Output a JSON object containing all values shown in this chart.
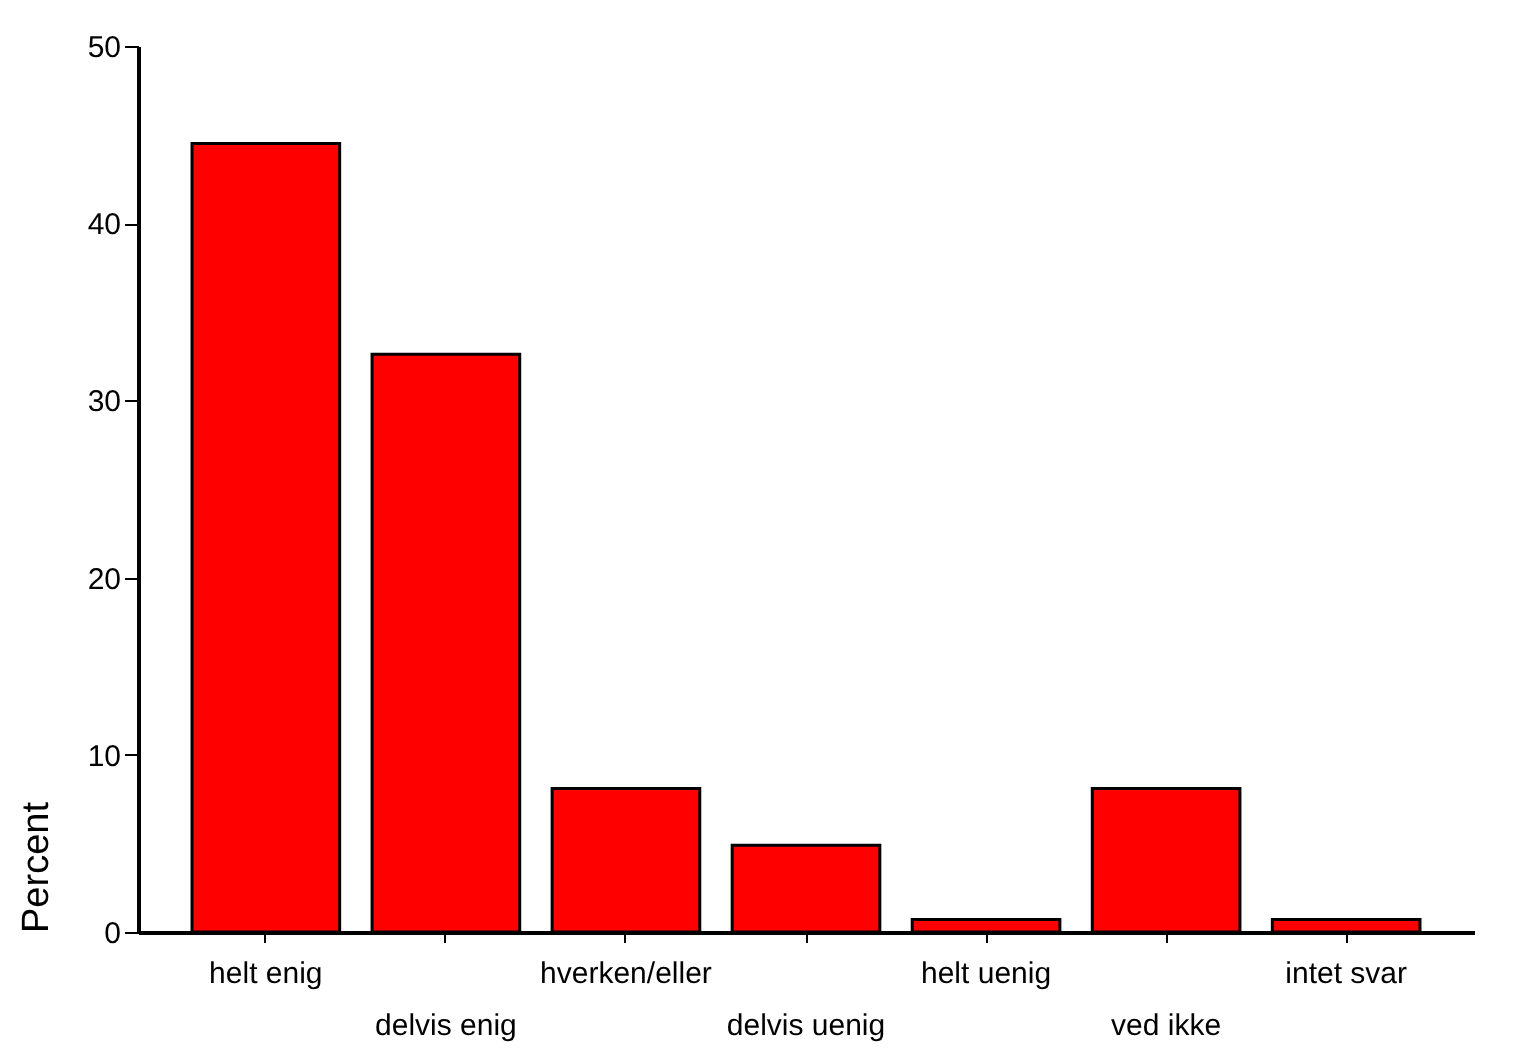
{
  "chart_data": {
    "type": "bar",
    "ylabel": "Percent",
    "categories": [
      "helt enig",
      "delvis enig",
      "hverken/eller",
      "delvis uenig",
      "helt uenig",
      "ved ikke",
      "intet svar"
    ],
    "values": [
      44.5,
      32.6,
      8.1,
      4.9,
      0.7,
      8.1,
      0.7
    ],
    "color": "#ff0000",
    "ylim": [
      0,
      50
    ],
    "yticks": [
      0,
      10,
      20,
      30,
      40,
      50
    ],
    "grid": false
  }
}
